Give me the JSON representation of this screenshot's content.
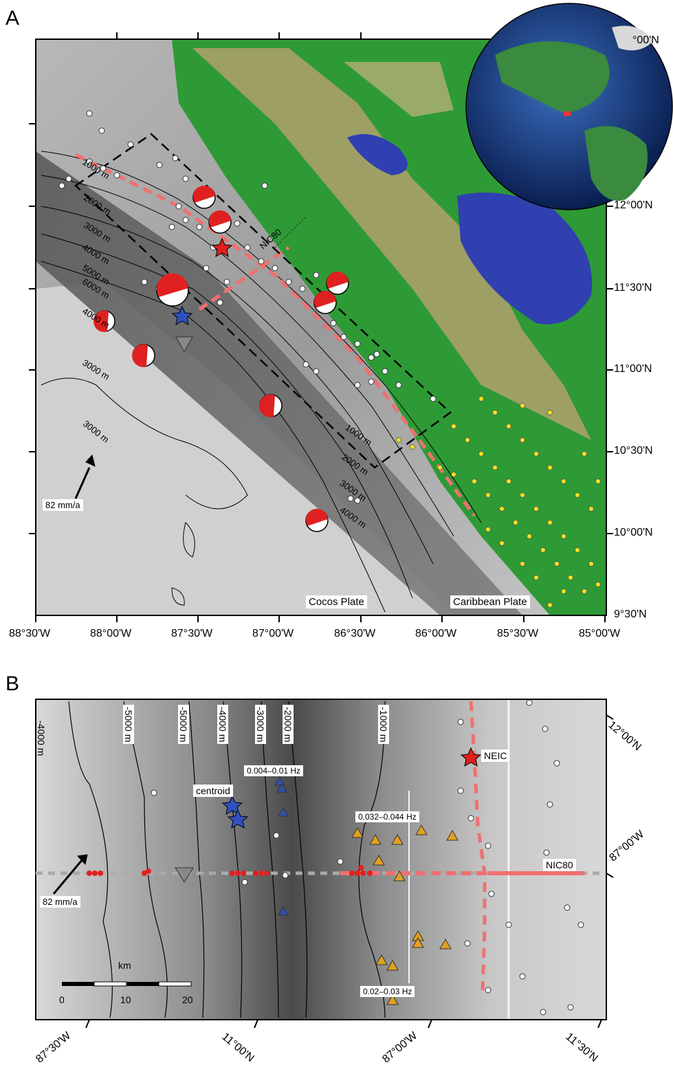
{
  "panel_a": {
    "letter": "A",
    "lon_labels": [
      "88°30'W",
      "88°00'W",
      "87°30'W",
      "87°00'W",
      "86°30'W",
      "86°00'W",
      "85°30'W",
      "85°00'W"
    ],
    "lat_labels": [
      "12°00'N",
      "11°30'N",
      "11°00'N",
      "10°30'N",
      "10°00'N",
      "9°30'N"
    ],
    "top_right_label": "°00'N",
    "depth_labels": [
      "1000 m",
      "2000 m",
      "3000 m",
      "4000 m",
      "5000 m",
      "6000 m",
      "4000 m",
      "3000 m",
      "3000 m",
      "1000 m",
      "2000 m",
      "3000 m",
      "4000 m"
    ],
    "profile_label": "NIC80",
    "velocity_label": "82 mm/a",
    "plate_labels": [
      "Cocos Plate",
      "Caribbean Plate"
    ]
  },
  "panel_b": {
    "letter": "B",
    "depth_labels": [
      "-4000 m",
      "-5000 m",
      "-5000 m",
      "-4000 m",
      "-3000 m",
      "-2000 m",
      "-1000 m"
    ],
    "freq_labels": [
      "0.004–0.01 Hz",
      "0.032–0.044 Hz",
      "0.02–0.03 Hz"
    ],
    "centroid_label": "centroid",
    "neic_label": "NEIC",
    "profile_label": "NIC80",
    "velocity_label": "82 mm/a",
    "scale_unit": "km",
    "scale_ticks": [
      "0",
      "10",
      "20"
    ],
    "bottom_labels": [
      "87°30'W",
      "11°00'N",
      "87°00'W",
      "11°30'N"
    ],
    "right_labels": [
      "12°00'N",
      "87°00'W"
    ]
  },
  "colors": {
    "profile_red": "#f07070",
    "star_red": "#e02020",
    "star_blue": "#3050c0",
    "triangle_orange": "#e0a020",
    "triangle_blue": "#3050b0",
    "aftershock_yellow": "#f0e020",
    "land_green": "#30a030",
    "lake_blue": "#3040b0"
  }
}
